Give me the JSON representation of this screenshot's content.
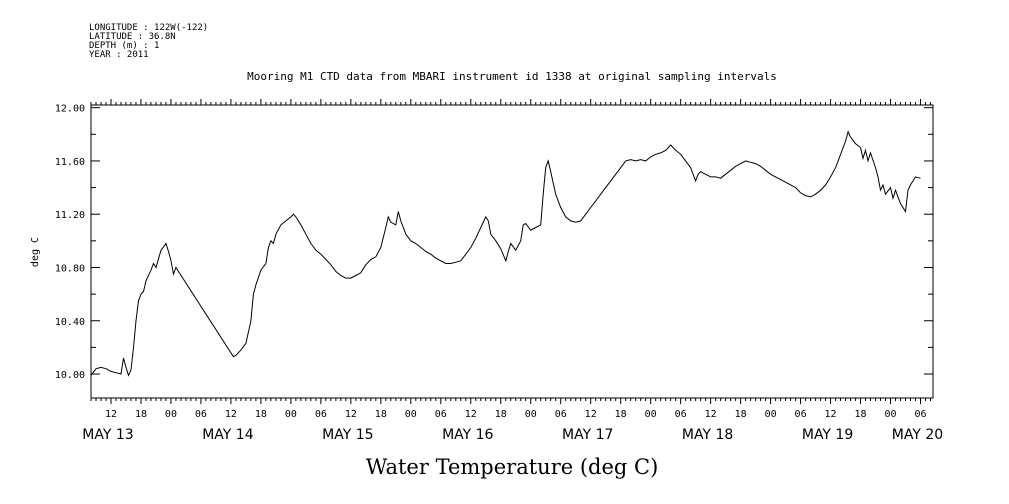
{
  "metadata": {
    "longitude": "LONGITUDE : 122W(-122)",
    "latitude": "LATITUDE : 36.8N",
    "depth": "DEPTH (m) : 1",
    "year": "YEAR : 2011"
  },
  "chart_data": {
    "type": "line",
    "title": "Mooring M1 CTD data from MBARI instrument id 1338 at original sampling intervals",
    "xlabel": "Water Temperature (deg C)",
    "ylabel": "deg C",
    "ylim": [
      9.82,
      12.02
    ],
    "xlim_hours": [
      8,
      176.5
    ],
    "yticks": [
      "10.00",
      "10.40",
      "10.80",
      "11.20",
      "11.60",
      "12.00"
    ],
    "hour_tick_labels": [
      "12",
      "18",
      "00",
      "06",
      "12",
      "18",
      "00",
      "06",
      "12",
      "18",
      "00",
      "06",
      "12",
      "18",
      "00",
      "06",
      "12",
      "18",
      "00",
      "06",
      "12",
      "18",
      "00",
      "06",
      "12",
      "18",
      "00",
      "06"
    ],
    "day_labels": [
      "MAY 13",
      "MAY 14",
      "MAY 15",
      "MAY 16",
      "MAY 17",
      "MAY 18",
      "MAY 19",
      "MAY 20"
    ],
    "grid": false,
    "x_unit": "hours after 2011-05-13 00:00",
    "series": [
      {
        "values": [
          [
            8,
            9.99
          ],
          [
            9,
            10.04
          ],
          [
            10,
            10.05
          ],
          [
            11,
            10.04
          ],
          [
            12,
            10.02
          ],
          [
            13,
            10.01
          ],
          [
            14,
            10.0
          ],
          [
            14.5,
            10.12
          ],
          [
            15,
            10.05
          ],
          [
            15.5,
            9.99
          ],
          [
            16,
            10.03
          ],
          [
            16.5,
            10.2
          ],
          [
            17,
            10.4
          ],
          [
            17.5,
            10.55
          ],
          [
            18,
            10.6
          ],
          [
            18.5,
            10.62
          ],
          [
            19,
            10.7
          ],
          [
            20,
            10.78
          ],
          [
            20.5,
            10.83
          ],
          [
            21,
            10.8
          ],
          [
            22,
            10.93
          ],
          [
            23,
            10.98
          ],
          [
            23.5,
            10.92
          ],
          [
            24,
            10.85
          ],
          [
            24.5,
            10.75
          ],
          [
            25,
            10.8
          ],
          [
            36.5,
            10.13
          ],
          [
            37,
            10.14
          ],
          [
            38,
            10.18
          ],
          [
            39,
            10.23
          ],
          [
            40,
            10.4
          ],
          [
            40.5,
            10.6
          ],
          [
            41,
            10.67
          ],
          [
            42,
            10.78
          ],
          [
            43,
            10.83
          ],
          [
            43.5,
            10.95
          ],
          [
            44,
            11.0
          ],
          [
            44.5,
            10.98
          ],
          [
            45,
            11.05
          ],
          [
            46,
            11.12
          ],
          [
            47,
            11.15
          ],
          [
            48,
            11.18
          ],
          [
            48.5,
            11.2
          ],
          [
            49,
            11.18
          ],
          [
            50,
            11.12
          ],
          [
            51,
            11.05
          ],
          [
            52,
            10.98
          ],
          [
            53,
            10.93
          ],
          [
            54,
            10.9
          ],
          [
            55,
            10.86
          ],
          [
            56,
            10.82
          ],
          [
            57,
            10.77
          ],
          [
            58,
            10.74
          ],
          [
            59,
            10.72
          ],
          [
            60,
            10.72
          ],
          [
            61,
            10.74
          ],
          [
            62,
            10.76
          ],
          [
            63,
            10.82
          ],
          [
            64,
            10.86
          ],
          [
            65,
            10.88
          ],
          [
            66,
            10.95
          ],
          [
            67,
            11.1
          ],
          [
            67.5,
            11.18
          ],
          [
            68,
            11.14
          ],
          [
            69,
            11.12
          ],
          [
            69.5,
            11.22
          ],
          [
            70,
            11.15
          ],
          [
            71,
            11.05
          ],
          [
            72,
            11.0
          ],
          [
            73,
            10.98
          ],
          [
            74,
            10.95
          ],
          [
            75,
            10.92
          ],
          [
            76,
            10.9
          ],
          [
            77,
            10.87
          ],
          [
            78,
            10.85
          ],
          [
            79,
            10.83
          ],
          [
            80,
            10.83
          ],
          [
            81,
            10.84
          ],
          [
            82,
            10.85
          ],
          [
            83,
            10.9
          ],
          [
            84,
            10.95
          ],
          [
            85,
            11.02
          ],
          [
            86,
            11.1
          ],
          [
            87,
            11.18
          ],
          [
            87.5,
            11.15
          ],
          [
            88,
            11.05
          ],
          [
            89,
            11.0
          ],
          [
            90,
            10.94
          ],
          [
            91,
            10.85
          ],
          [
            91.5,
            10.92
          ],
          [
            92,
            10.98
          ],
          [
            93,
            10.93
          ],
          [
            94,
            11.0
          ],
          [
            94.5,
            11.12
          ],
          [
            95,
            11.13
          ],
          [
            96,
            11.08
          ],
          [
            97,
            11.1
          ],
          [
            98,
            11.12
          ],
          [
            98.5,
            11.35
          ],
          [
            99,
            11.55
          ],
          [
            99.5,
            11.6
          ],
          [
            100,
            11.52
          ],
          [
            101,
            11.35
          ],
          [
            102,
            11.25
          ],
          [
            103,
            11.18
          ],
          [
            104,
            11.15
          ],
          [
            105,
            11.14
          ],
          [
            106,
            11.15
          ],
          [
            107,
            11.2
          ],
          [
            108,
            11.25
          ],
          [
            109,
            11.3
          ],
          [
            110,
            11.35
          ],
          [
            111,
            11.4
          ],
          [
            112,
            11.45
          ],
          [
            113,
            11.5
          ],
          [
            114,
            11.55
          ],
          [
            115,
            11.6
          ],
          [
            116,
            11.61
          ],
          [
            117,
            11.6
          ],
          [
            118,
            11.61
          ],
          [
            119,
            11.6
          ],
          [
            120,
            11.63
          ],
          [
            121,
            11.65
          ],
          [
            122,
            11.66
          ],
          [
            123,
            11.68
          ],
          [
            124,
            11.72
          ],
          [
            125,
            11.68
          ],
          [
            126,
            11.65
          ],
          [
            127,
            11.6
          ],
          [
            128,
            11.55
          ],
          [
            129,
            11.45
          ],
          [
            129.5,
            11.5
          ],
          [
            130,
            11.52
          ],
          [
            131,
            11.5
          ],
          [
            132,
            11.48
          ],
          [
            133,
            11.48
          ],
          [
            134,
            11.47
          ],
          [
            135,
            11.5
          ],
          [
            136,
            11.53
          ],
          [
            137,
            11.56
          ],
          [
            138,
            11.58
          ],
          [
            139,
            11.6
          ],
          [
            140,
            11.59
          ],
          [
            141,
            11.58
          ],
          [
            142,
            11.56
          ],
          [
            143,
            11.53
          ],
          [
            144,
            11.5
          ],
          [
            145,
            11.48
          ],
          [
            146,
            11.46
          ],
          [
            147,
            11.44
          ],
          [
            148,
            11.42
          ],
          [
            149,
            11.4
          ],
          [
            150,
            11.36
          ],
          [
            151,
            11.34
          ],
          [
            152,
            11.33
          ],
          [
            153,
            11.35
          ],
          [
            154,
            11.38
          ],
          [
            155,
            11.42
          ],
          [
            156,
            11.48
          ],
          [
            157,
            11.55
          ],
          [
            158,
            11.65
          ],
          [
            159,
            11.75
          ],
          [
            159.5,
            11.82
          ],
          [
            160,
            11.78
          ],
          [
            161,
            11.73
          ],
          [
            162,
            11.7
          ],
          [
            162.5,
            11.62
          ],
          [
            163,
            11.68
          ],
          [
            163.5,
            11.6
          ],
          [
            164,
            11.66
          ],
          [
            165,
            11.55
          ],
          [
            165.5,
            11.48
          ],
          [
            166,
            11.38
          ],
          [
            166.5,
            11.42
          ],
          [
            167,
            11.35
          ],
          [
            168,
            11.4
          ],
          [
            168.5,
            11.32
          ],
          [
            169,
            11.38
          ],
          [
            170,
            11.28
          ],
          [
            171,
            11.22
          ],
          [
            171.5,
            11.38
          ],
          [
            172,
            11.42
          ],
          [
            173,
            11.48
          ],
          [
            174,
            11.47
          ]
        ]
      }
    ]
  }
}
